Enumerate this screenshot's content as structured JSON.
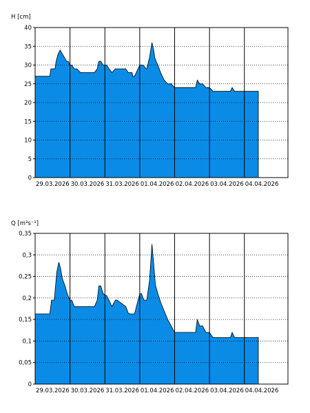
{
  "chart_data": [
    {
      "type": "area",
      "ylabel": "H [cm]",
      "ylim": [
        0,
        40
      ],
      "yticks": [
        0,
        5,
        10,
        15,
        20,
        25,
        30,
        35,
        40
      ],
      "ytick_labels": [
        "0",
        "5",
        "10",
        "15",
        "20",
        "25",
        "30",
        "35",
        "40"
      ],
      "xlim": [
        0,
        7.25
      ],
      "xtick_labels": [
        "29.03.2026",
        "30.03.2026",
        "31.03.2026",
        "01.04.2026",
        "02.04.2026",
        "03.04.2026",
        "04.04.2026"
      ],
      "grid": true,
      "fill_color": "#0a8ce6",
      "x": [
        0,
        0.42,
        0.45,
        0.57,
        0.6,
        0.66,
        0.72,
        0.78,
        0.84,
        0.9,
        0.95,
        1.0,
        1.05,
        1.12,
        1.2,
        1.3,
        1.4,
        1.7,
        1.78,
        1.83,
        1.88,
        1.95,
        2.05,
        2.12,
        2.2,
        2.3,
        2.35,
        2.6,
        2.67,
        2.72,
        2.78,
        2.8,
        2.85,
        3.0,
        3.1,
        3.18,
        3.2,
        3.28,
        3.35,
        3.4,
        3.43,
        3.47,
        3.52,
        3.6,
        3.7,
        3.8,
        3.9,
        4.0,
        4.1,
        4.6,
        4.65,
        4.72,
        4.8,
        4.9,
        5.0,
        5.1,
        5.2,
        5.6,
        5.65,
        5.72,
        5.8,
        6.0,
        6.4
      ],
      "values": [
        27,
        27,
        29,
        29,
        31,
        33,
        34,
        33,
        32,
        31,
        31,
        30,
        30,
        29,
        29,
        28,
        28,
        28,
        29,
        31,
        31,
        30,
        30,
        29,
        28,
        29,
        29,
        29,
        28,
        28,
        28,
        27,
        27,
        30,
        30,
        29,
        29,
        32,
        36,
        34,
        32,
        31,
        30,
        28,
        26,
        25,
        25,
        24,
        24,
        24,
        26,
        25,
        25,
        24,
        24,
        23,
        23,
        23,
        24,
        23,
        23,
        23,
        23
      ]
    },
    {
      "type": "area",
      "ylabel": "Q [m³s⁻¹]",
      "ylim": [
        0,
        0.35
      ],
      "yticks": [
        0,
        0.05,
        0.1,
        0.15,
        0.2,
        0.25,
        0.3,
        0.35
      ],
      "ytick_labels": [
        "0",
        "0,05",
        "0,1",
        "0,15",
        "0,2",
        "0,25",
        "0,3",
        "0,35"
      ],
      "xlim": [
        0,
        7.25
      ],
      "xtick_labels": [
        "29.03.2026",
        "30.03.2026",
        "31.03.2026",
        "01.04.2026",
        "02.04.2026",
        "03.04.2026",
        "04.04.2026"
      ],
      "grid": true,
      "fill_color": "#0a8ce6",
      "x": [
        0,
        0.42,
        0.47,
        0.55,
        0.62,
        0.68,
        0.73,
        0.78,
        0.85,
        0.92,
        1.0,
        1.05,
        1.12,
        1.2,
        1.4,
        1.7,
        1.78,
        1.83,
        1.88,
        1.95,
        2.05,
        2.12,
        2.2,
        2.3,
        2.35,
        2.6,
        2.67,
        2.72,
        2.78,
        2.85,
        3.0,
        3.05,
        3.12,
        3.2,
        3.28,
        3.35,
        3.4,
        3.45,
        3.52,
        3.6,
        3.7,
        3.8,
        3.9,
        4.0,
        4.6,
        4.65,
        4.72,
        4.8,
        4.9,
        5.0,
        5.1,
        5.6,
        5.65,
        5.72,
        5.8,
        6.4
      ],
      "values": [
        0.163,
        0.163,
        0.195,
        0.195,
        0.26,
        0.283,
        0.268,
        0.245,
        0.23,
        0.21,
        0.195,
        0.195,
        0.18,
        0.18,
        0.18,
        0.18,
        0.195,
        0.228,
        0.228,
        0.21,
        0.205,
        0.195,
        0.18,
        0.195,
        0.195,
        0.18,
        0.165,
        0.163,
        0.163,
        0.163,
        0.21,
        0.21,
        0.195,
        0.195,
        0.24,
        0.325,
        0.28,
        0.23,
        0.21,
        0.19,
        0.17,
        0.15,
        0.135,
        0.12,
        0.12,
        0.15,
        0.135,
        0.135,
        0.12,
        0.12,
        0.108,
        0.108,
        0.12,
        0.108,
        0.108,
        0.108
      ]
    }
  ]
}
